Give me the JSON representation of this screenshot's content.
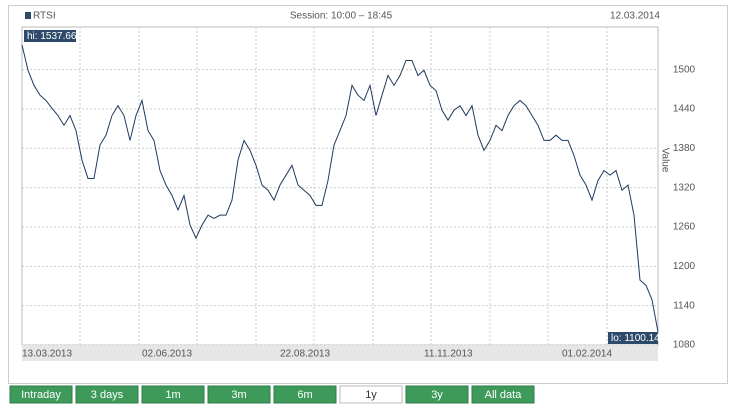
{
  "chart_data": {
    "type": "line",
    "subtitle": "Session: 10:00 – 18:45",
    "date": "12.03.2014",
    "y_label": "Value",
    "hi_label": "hi: 1537.66",
    "lo_label": "lo: 1100.14",
    "categories": [
      "13.03.2013",
      null,
      null,
      null,
      null,
      null,
      null,
      null,
      null,
      null,
      null,
      null,
      null,
      null,
      null,
      null,
      null,
      null,
      null,
      null,
      "02.06.2013",
      null,
      null,
      null,
      null,
      null,
      null,
      null,
      null,
      null,
      null,
      null,
      null,
      null,
      null,
      null,
      null,
      null,
      null,
      null,
      null,
      null,
      null,
      "22.08.2013",
      null,
      null,
      null,
      null,
      null,
      null,
      null,
      null,
      null,
      null,
      null,
      null,
      null,
      null,
      null,
      null,
      null,
      null,
      null,
      null,
      null,
      null,
      null,
      "11.11.2013",
      null,
      null,
      null,
      null,
      null,
      null,
      null,
      null,
      null,
      null,
      null,
      null,
      null,
      null,
      null,
      null,
      null,
      null,
      null,
      null,
      null,
      null,
      "01.02.2014",
      null,
      null,
      null,
      null,
      null,
      null,
      null,
      null,
      null,
      null,
      null,
      null,
      null,
      null,
      null,
      null
    ],
    "series": [
      {
        "name": "RTSI",
        "color": "#1f3a5f",
        "values": [
          1537.66,
          1499,
          1476,
          1461,
          1453,
          1441,
          1430,
          1415,
          1430,
          1407,
          1362,
          1334,
          1334,
          1385,
          1400,
          1430,
          1445,
          1430,
          1392,
          1430,
          1453,
          1407,
          1392,
          1346,
          1324,
          1308,
          1286,
          1308,
          1263,
          1243,
          1263,
          1278,
          1273,
          1278,
          1278,
          1301,
          1362,
          1392,
          1377,
          1354,
          1324,
          1316,
          1301,
          1324,
          1339,
          1354,
          1324,
          1316,
          1308,
          1293,
          1293,
          1331,
          1385,
          1407,
          1430,
          1476,
          1461,
          1453,
          1476,
          1430,
          1461,
          1491,
          1476,
          1491,
          1514,
          1514,
          1491,
          1499,
          1476,
          1468,
          1438,
          1423,
          1438,
          1445,
          1430,
          1445,
          1400,
          1377,
          1392,
          1415,
          1407,
          1430,
          1445,
          1453,
          1445,
          1430,
          1415,
          1392,
          1392,
          1400,
          1392,
          1392,
          1369,
          1339,
          1324,
          1301,
          1331,
          1346,
          1339,
          1346,
          1316,
          1324,
          1278,
          1179,
          1171,
          1149,
          1100.14
        ]
      }
    ],
    "ylim": [
      1080,
      1565
    ],
    "yticks": [
      1080,
      1140,
      1200,
      1260,
      1320,
      1380,
      1440,
      1500
    ],
    "grid": true,
    "buttons": [
      {
        "label": "Intraday"
      },
      {
        "label": "3 days"
      },
      {
        "label": "1m"
      },
      {
        "label": "3m"
      },
      {
        "label": "6m"
      },
      {
        "label": "1y",
        "active": true
      },
      {
        "label": "3y"
      },
      {
        "label": "All data"
      }
    ]
  }
}
